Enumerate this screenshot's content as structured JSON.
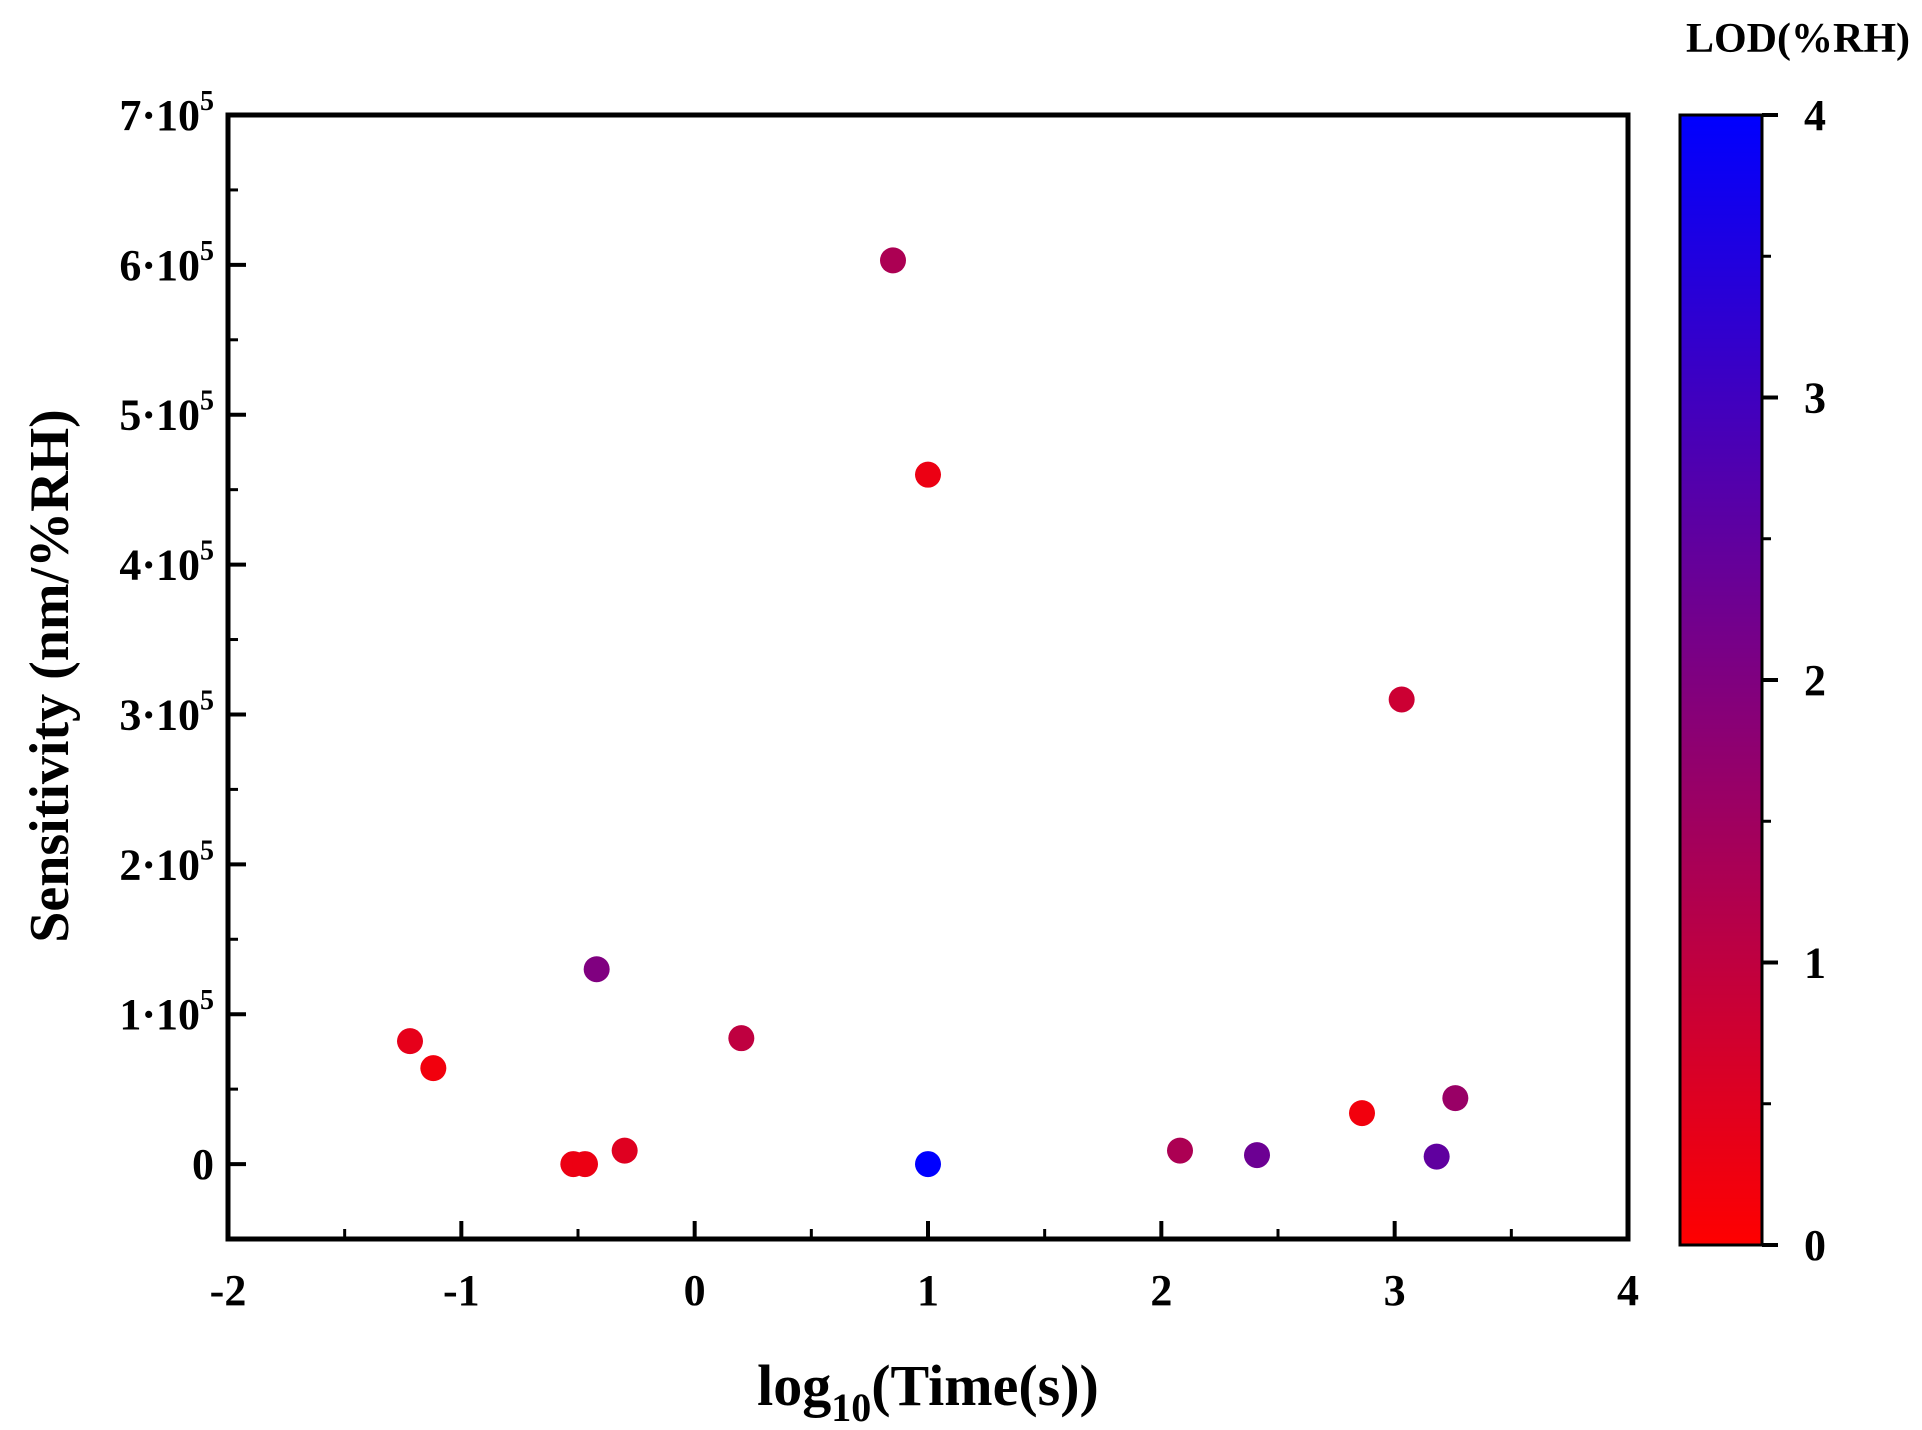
{
  "chart_data": {
    "type": "scatter",
    "title": "",
    "xlabel": {
      "base": "log",
      "sub": "10",
      "rest": "(Time(s))"
    },
    "ylabel": "Sensitivity (nm/%RH)",
    "xlim": [
      -2,
      4
    ],
    "ylim": [
      -50000,
      700000
    ],
    "xticks": [
      -2,
      -1,
      0,
      1,
      2,
      3,
      4
    ],
    "yticks": [
      {
        "value": 0,
        "label": "0"
      },
      {
        "value": 100000,
        "label": "1·10",
        "exp": "5"
      },
      {
        "value": 200000,
        "label": "2·10",
        "exp": "5"
      },
      {
        "value": 300000,
        "label": "3·10",
        "exp": "5"
      },
      {
        "value": 400000,
        "label": "4·10",
        "exp": "5"
      },
      {
        "value": 500000,
        "label": "5·10",
        "exp": "5"
      },
      {
        "value": 600000,
        "label": "6·10",
        "exp": "5"
      },
      {
        "value": 700000,
        "label": "7·10",
        "exp": "5"
      }
    ],
    "colorbar": {
      "label": "LOD(%RH)",
      "range": [
        0,
        4
      ],
      "ticks": [
        0,
        1,
        2,
        3,
        4
      ],
      "color_low": "#ff0000",
      "color_high": "#0000ff"
    },
    "points": [
      {
        "x": -1.22,
        "y": 82000,
        "lod": 0.4
      },
      {
        "x": -1.12,
        "y": 64000,
        "lod": 0.2
      },
      {
        "x": -0.52,
        "y": 0,
        "lod": 0.3
      },
      {
        "x": -0.47,
        "y": 0,
        "lod": 0.3
      },
      {
        "x": -0.42,
        "y": 130000,
        "lod": 2.0
      },
      {
        "x": -0.3,
        "y": 9000,
        "lod": 0.5
      },
      {
        "x": 0.2,
        "y": 84000,
        "lod": 1.0
      },
      {
        "x": 0.85,
        "y": 603000,
        "lod": 1.3
      },
      {
        "x": 1.0,
        "y": 460000,
        "lod": 0.3
      },
      {
        "x": 1.0,
        "y": 0,
        "lod": 4.0
      },
      {
        "x": 2.08,
        "y": 9000,
        "lod": 1.3
      },
      {
        "x": 2.41,
        "y": 6000,
        "lod": 2.3
      },
      {
        "x": 2.86,
        "y": 34000,
        "lod": 0.2
      },
      {
        "x": 3.03,
        "y": 310000,
        "lod": 0.8
      },
      {
        "x": 3.18,
        "y": 5000,
        "lod": 2.5
      },
      {
        "x": 3.26,
        "y": 44000,
        "lod": 1.6
      }
    ]
  }
}
